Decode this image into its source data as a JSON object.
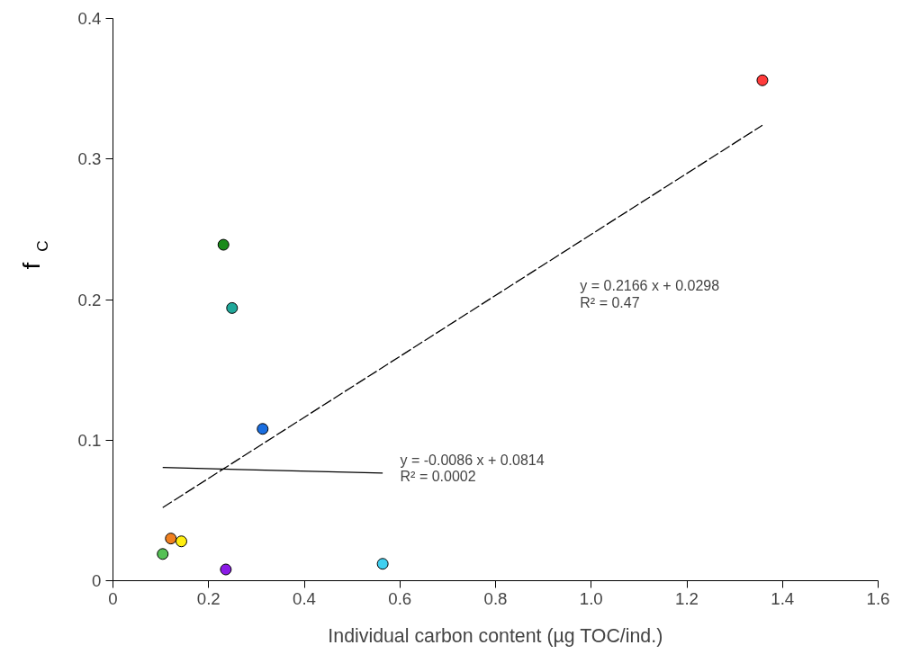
{
  "chart_data": {
    "type": "scatter",
    "xlabel": "Individual carbon content (µg TOC/ind.)",
    "ylabel": "f$_{C}$",
    "xlim": [
      0,
      1.6
    ],
    "ylim": [
      0,
      0.4
    ],
    "xticks": [
      0,
      0.2,
      0.4,
      0.6,
      0.8,
      {
        "value": 1.0,
        "label": "1.0"
      },
      1.2,
      1.4,
      1.6
    ],
    "yticks": [
      0,
      0.1,
      0.2,
      0.3,
      0.4
    ],
    "grid": false,
    "series": [
      {
        "marker": "circle",
        "x": [
          1.358,
          0.231,
          0.249,
          0.313,
          0.121,
          0.143,
          0.104,
          0.236,
          0.564
        ],
        "values": [
          0.356,
          0.239,
          0.194,
          0.108,
          0.03,
          0.028,
          0.019,
          0.008,
          0.012
        ],
        "colors": [
          "#ff3b3b",
          "#1a8a1a",
          "#20a89a",
          "#1a6ee0",
          "#f08020",
          "#ffee10",
          "#55c055",
          "#8a1ae6",
          "#40d0f0"
        ]
      },
      {
        "type": "line",
        "x": [
          0.104,
          1.358
        ],
        "values": [
          0.052,
          0.324
        ],
        "color": "#000000",
        "line_style": "dashed"
      },
      {
        "type": "line",
        "x": [
          0.104,
          0.564
        ],
        "values": [
          0.0805,
          0.0766
        ],
        "color": "#000000",
        "line_style": "solid"
      }
    ],
    "annotations": [
      "y = 0.2166 x + 0.0298\nR² = 0.47",
      "y = -0.0086 x + 0.0814\nR² = 0.0002"
    ]
  }
}
